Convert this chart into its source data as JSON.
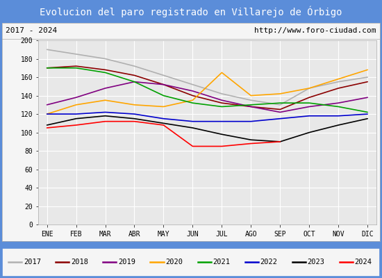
{
  "title": "Evolucion del paro registrado en Villarejo de Órbigo",
  "subtitle_left": "2017 - 2024",
  "subtitle_right": "http://www.foro-ciudad.com",
  "months": [
    "ENE",
    "FEB",
    "MAR",
    "ABR",
    "MAY",
    "JUN",
    "JUL",
    "AGO",
    "SEP",
    "OCT",
    "NOV",
    "DIC"
  ],
  "ylim": [
    0,
    200
  ],
  "yticks": [
    0,
    20,
    40,
    60,
    80,
    100,
    120,
    140,
    160,
    180,
    200
  ],
  "series": {
    "2017": {
      "color": "#b0b0b0",
      "linewidth": 1.2,
      "data": [
        190,
        185,
        180,
        172,
        162,
        152,
        142,
        135,
        130,
        148,
        155,
        160
      ]
    },
    "2018": {
      "color": "#8b0000",
      "linewidth": 1.2,
      "data": [
        170,
        172,
        168,
        162,
        152,
        140,
        132,
        128,
        125,
        138,
        148,
        155
      ]
    },
    "2019": {
      "color": "#800080",
      "linewidth": 1.2,
      "data": [
        130,
        138,
        148,
        155,
        152,
        145,
        135,
        128,
        122,
        128,
        132,
        138
      ]
    },
    "2020": {
      "color": "#ffa500",
      "linewidth": 1.2,
      "data": [
        120,
        130,
        135,
        130,
        128,
        135,
        165,
        140,
        142,
        148,
        158,
        168
      ]
    },
    "2021": {
      "color": "#00a000",
      "linewidth": 1.2,
      "data": [
        170,
        170,
        165,
        155,
        140,
        132,
        128,
        130,
        132,
        132,
        128,
        122
      ]
    },
    "2022": {
      "color": "#0000cd",
      "linewidth": 1.2,
      "data": [
        120,
        120,
        122,
        120,
        115,
        112,
        112,
        112,
        115,
        118,
        118,
        120
      ]
    },
    "2023": {
      "color": "#000000",
      "linewidth": 1.2,
      "data": [
        108,
        115,
        118,
        115,
        110,
        105,
        98,
        92,
        90,
        100,
        108,
        115
      ]
    },
    "2024": {
      "color": "#ff0000",
      "linewidth": 1.2,
      "data": [
        105,
        108,
        112,
        112,
        108,
        85,
        85,
        88,
        90,
        null,
        null,
        null
      ]
    }
  },
  "title_bg_color": "#5b8dd9",
  "title_fg_color": "#ffffff",
  "subtitle_bg_color": "#f5f5f5",
  "subtitle_fg_color": "#000000",
  "plot_bg_color": "#e8e8e8",
  "grid_color": "#ffffff",
  "legend_bg_color": "#f5f5f5",
  "legend_border_color": "#5b8dd9",
  "outer_bg_color": "#5b8dd9"
}
